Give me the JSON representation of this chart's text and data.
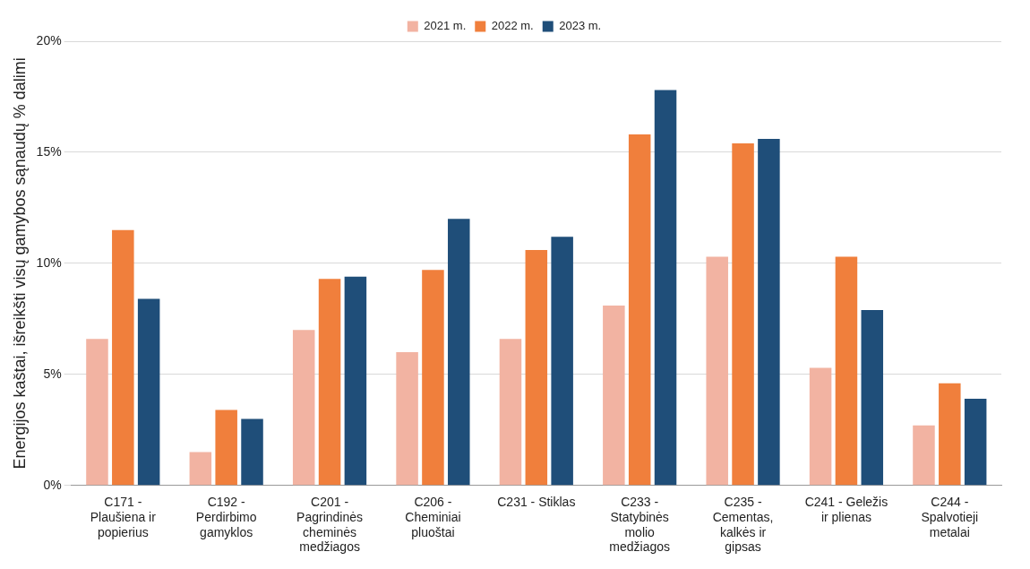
{
  "chart_data": {
    "type": "bar",
    "ylabel": "Energijos kaštai, išreikšti visų gamybos sąnaudų % dalimi",
    "categories": [
      "C171 - Plaušiena ir popierius",
      "C192 - Perdirbimo gamyklos",
      "C201 - Pagrindinės cheminės medžiagos",
      "C206 - Cheminiai pluoštai",
      "C231 - Stiklas",
      "C233 - Statybinės molio medžiagos",
      "C235 - Cementas, kalkės ir gipsas",
      "C241 - Geležis ir plienas",
      "C244 - Spalvotieji metalai"
    ],
    "series": [
      {
        "name": "2021 m.",
        "color": "#f2b3a2",
        "values": [
          6.6,
          1.5,
          7.0,
          6.0,
          6.6,
          8.1,
          10.3,
          5.3,
          2.7
        ]
      },
      {
        "name": "2022 m.",
        "color": "#f07f3c",
        "values": [
          11.5,
          3.4,
          9.3,
          9.7,
          10.6,
          15.8,
          15.4,
          10.3,
          4.6
        ]
      },
      {
        "name": "2023 m.",
        "color": "#1f4e79",
        "values": [
          8.4,
          3.0,
          9.4,
          12.0,
          11.2,
          17.8,
          15.6,
          7.9,
          3.9
        ]
      }
    ],
    "ylim": [
      0,
      20
    ],
    "yticks": [
      {
        "value": 0,
        "label": "0%"
      },
      {
        "value": 5,
        "label": "5%"
      },
      {
        "value": 10,
        "label": "10%"
      },
      {
        "value": 15,
        "label": "15%"
      },
      {
        "value": 20,
        "label": "20%"
      }
    ],
    "grid": "y",
    "legend": "top"
  }
}
